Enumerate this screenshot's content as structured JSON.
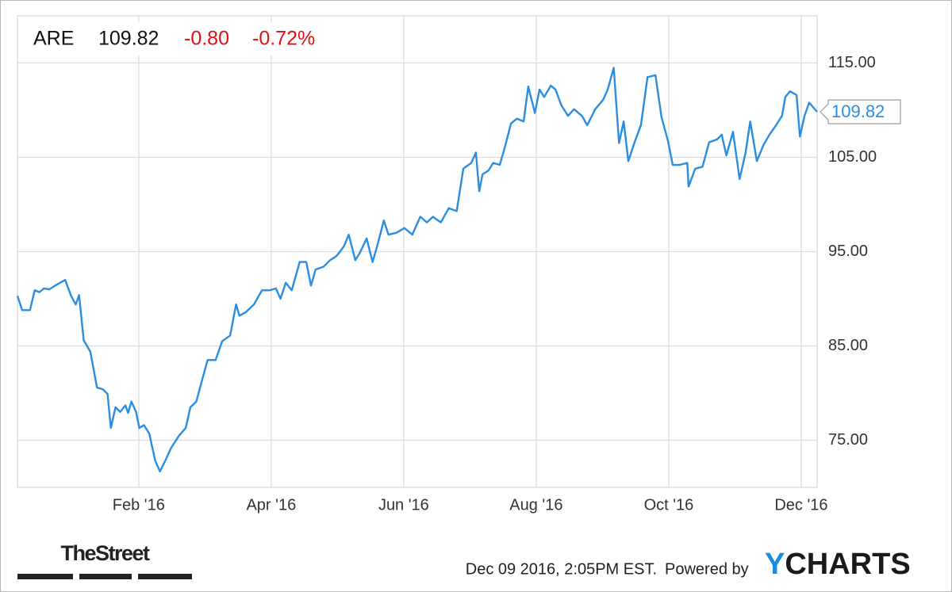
{
  "chart_data": {
    "type": "line",
    "ticker": "ARE",
    "change": "-0.80",
    "change_pct": "-0.72%",
    "color": "#2a8de0",
    "grid": true,
    "xlim": [
      0.17,
      12.24
    ],
    "ylim": [
      70,
      120
    ],
    "xticks": [
      {
        "value": 2,
        "label": "Feb '16"
      },
      {
        "value": 4,
        "label": "Apr '16"
      },
      {
        "value": 6,
        "label": "Jun '16"
      },
      {
        "value": 8,
        "label": "Aug '16"
      },
      {
        "value": 10,
        "label": "Oct '16"
      },
      {
        "value": 12,
        "label": "Dec '16"
      }
    ],
    "yticks": [
      {
        "value": 75,
        "label": "75.00"
      },
      {
        "value": 85,
        "label": "85.00"
      },
      {
        "value": 95,
        "label": "95.00"
      },
      {
        "value": 105,
        "label": "105.00"
      },
      {
        "value": 115,
        "label": "115.00"
      }
    ],
    "x": [
      0.17,
      0.24,
      0.36,
      0.43,
      0.5,
      0.57,
      0.65,
      0.74,
      0.89,
      0.98,
      1.05,
      1.1,
      1.17,
      1.27,
      1.37,
      1.46,
      1.53,
      1.58,
      1.65,
      1.72,
      1.8,
      1.84,
      1.89,
      1.96,
      2.01,
      2.08,
      2.16,
      2.25,
      2.32,
      2.4,
      2.49,
      2.61,
      2.71,
      2.78,
      2.87,
      2.95,
      3.04,
      3.16,
      3.26,
      3.38,
      3.47,
      3.52,
      3.62,
      3.74,
      3.86,
      3.98,
      4.07,
      4.14,
      4.22,
      4.31,
      4.43,
      4.53,
      4.6,
      4.67,
      4.79,
      4.89,
      4.98,
      5.05,
      5.1,
      5.17,
      5.27,
      5.34,
      5.44,
      5.53,
      5.6,
      5.7,
      5.77,
      5.89,
      6.01,
      6.13,
      6.25,
      6.35,
      6.44,
      6.56,
      6.68,
      6.8,
      6.9,
      7.02,
      7.09,
      7.14,
      7.19,
      7.28,
      7.35,
      7.45,
      7.52,
      7.62,
      7.71,
      7.81,
      7.88,
      7.98,
      8.05,
      8.12,
      8.22,
      8.29,
      8.38,
      8.48,
      8.57,
      8.69,
      8.77,
      8.89,
      9.01,
      9.08,
      9.17,
      9.25,
      9.32,
      9.39,
      9.49,
      9.58,
      9.68,
      9.8,
      9.89,
      9.99,
      10.06,
      10.16,
      10.28,
      10.3,
      10.4,
      10.51,
      10.61,
      10.73,
      10.8,
      10.87,
      10.97,
      11.07,
      11.16,
      11.23,
      11.33,
      11.43,
      11.52,
      11.62,
      11.71,
      11.76,
      11.83,
      11.93,
      11.98,
      12.05,
      12.12,
      12.24
    ],
    "values": [
      90.3,
      88.8,
      88.8,
      90.9,
      90.7,
      91.1,
      91.0,
      91.4,
      92.0,
      90.3,
      89.4,
      90.4,
      85.6,
      84.4,
      80.6,
      80.4,
      79.9,
      76.3,
      78.5,
      78.0,
      78.7,
      77.9,
      79.1,
      78.0,
      76.3,
      76.6,
      75.7,
      72.8,
      71.7,
      72.8,
      74.2,
      75.5,
      76.3,
      78.5,
      79.1,
      81.2,
      83.5,
      83.5,
      85.5,
      86.1,
      89.4,
      88.2,
      88.6,
      89.4,
      90.9,
      90.9,
      91.1,
      90.0,
      91.7,
      90.9,
      93.9,
      93.9,
      91.4,
      93.1,
      93.4,
      94.1,
      94.5,
      95.1,
      95.6,
      96.8,
      94.1,
      94.9,
      96.4,
      93.9,
      95.6,
      98.3,
      96.8,
      97.0,
      97.5,
      96.8,
      98.7,
      98.1,
      98.7,
      98.1,
      99.6,
      99.3,
      103.8,
      104.4,
      105.5,
      101.4,
      103.2,
      103.6,
      104.4,
      104.2,
      105.9,
      108.6,
      109.1,
      108.8,
      112.5,
      109.7,
      112.2,
      111.4,
      112.6,
      112.2,
      110.5,
      109.4,
      110.1,
      109.4,
      108.4,
      110.1,
      111.1,
      112.2,
      114.5,
      106.5,
      108.8,
      104.6,
      106.7,
      108.4,
      113.5,
      113.7,
      109.3,
      106.7,
      104.2,
      104.2,
      104.4,
      101.9,
      103.8,
      104.0,
      106.6,
      106.9,
      107.4,
      105.2,
      107.7,
      102.7,
      105.5,
      108.8,
      104.6,
      106.3,
      107.4,
      108.4,
      109.4,
      111.4,
      112.0,
      111.6,
      107.2,
      109.4,
      110.8,
      109.82
    ],
    "source_logo": "TheStreet",
    "timestamp": "Dec 09 2016, 2:05PM EST.",
    "powered_by": "Powered by",
    "brand": "YCHARTS"
  }
}
